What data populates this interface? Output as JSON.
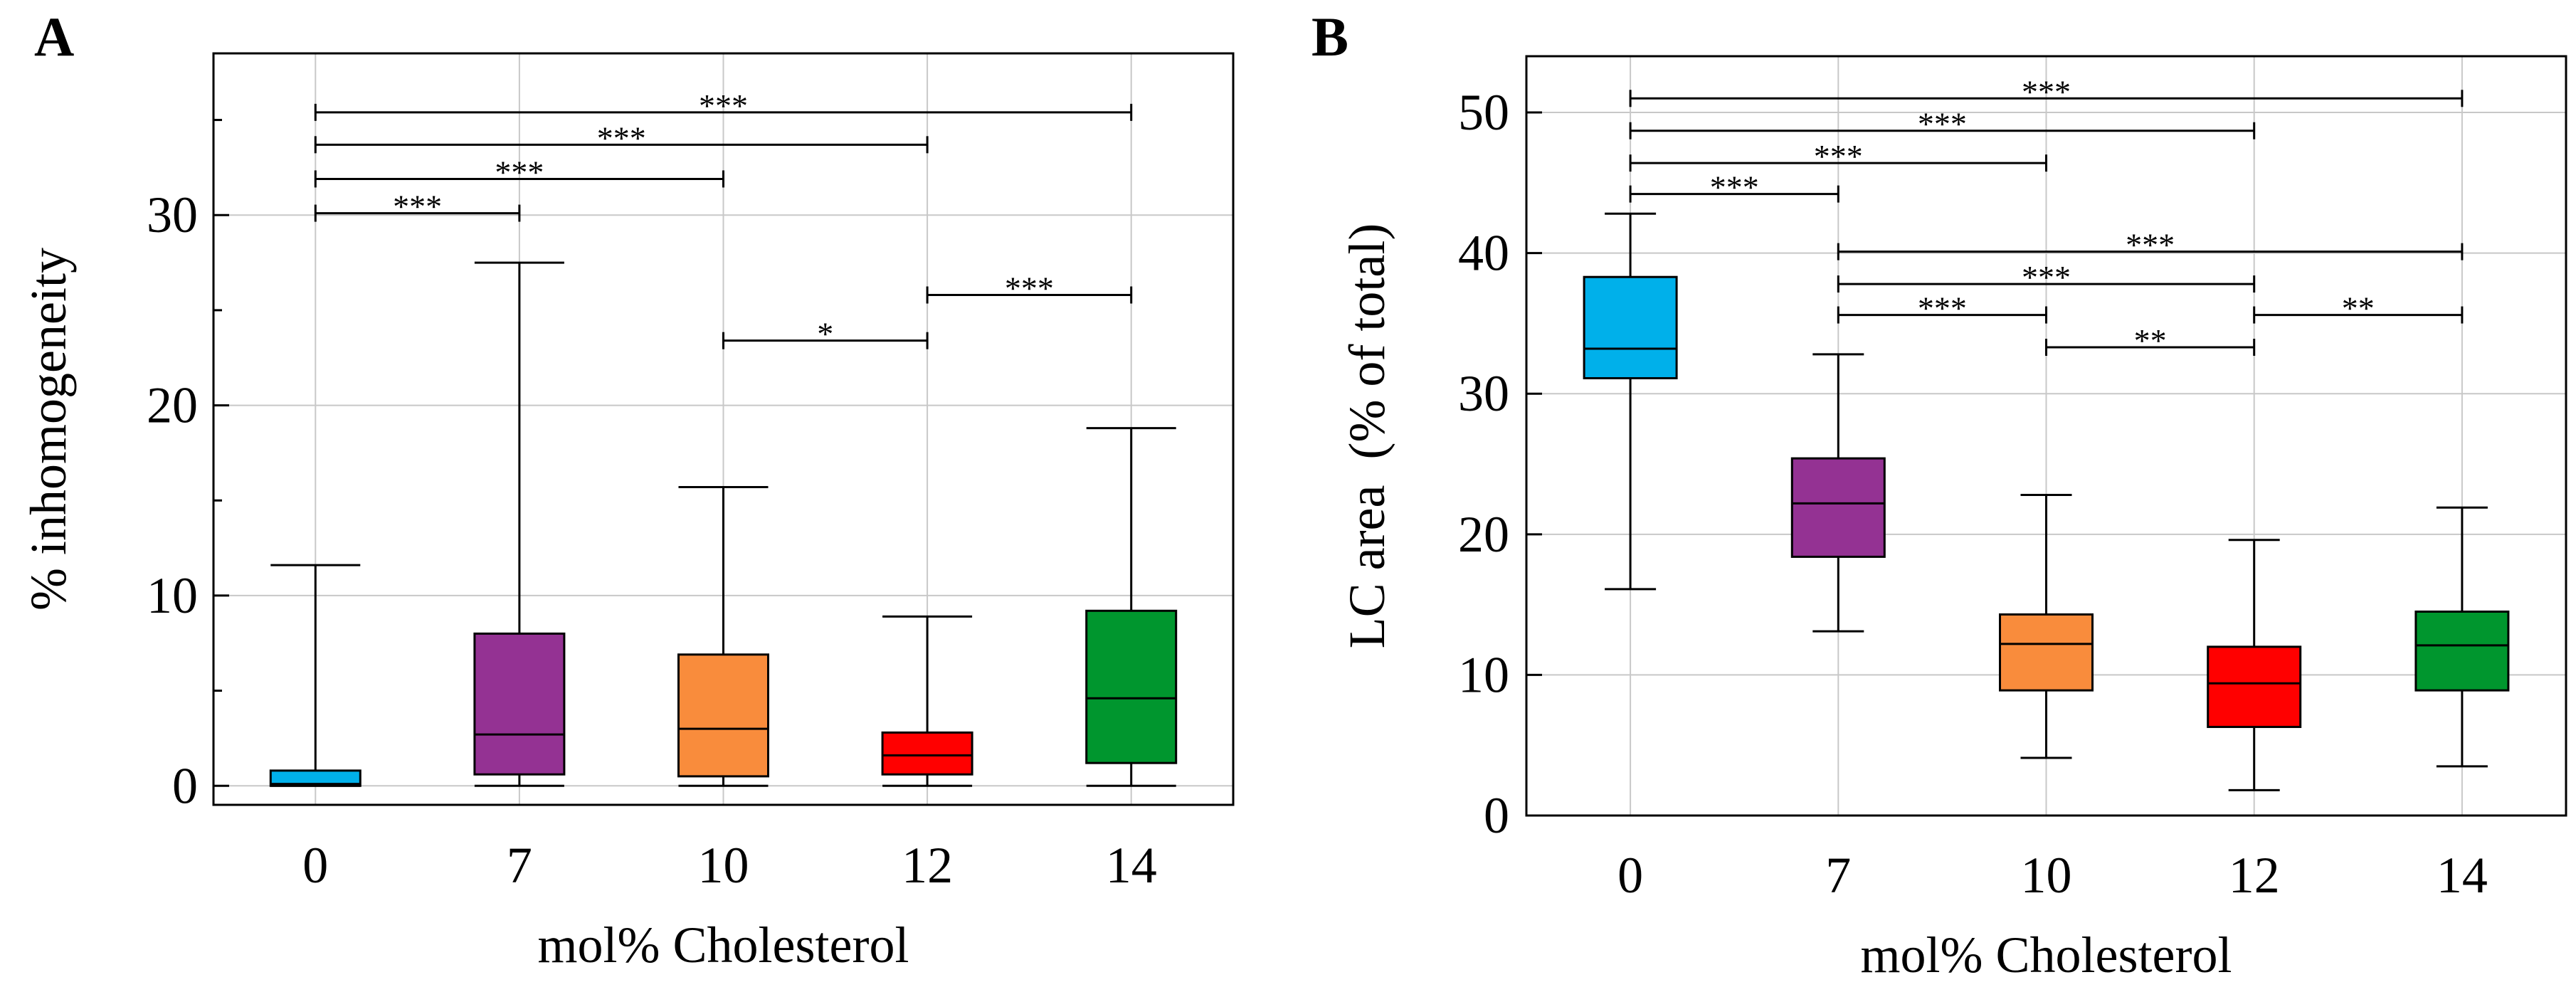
{
  "figure": {
    "colors": {
      "0": "#00b0ea",
      "7": "#943293",
      "10": "#f98c3c",
      "12": "#ff0000",
      "14": "#00962e"
    }
  },
  "chart_data": [
    {
      "panel": "A",
      "type": "box",
      "title": "",
      "xlabel": "mol% Cholesterol",
      "ylabel": "% inhomogeneity",
      "categories": [
        "0",
        "7",
        "10",
        "12",
        "14"
      ],
      "ylim": [
        -1,
        38.5
      ],
      "yticks": [
        0,
        10,
        20,
        30
      ],
      "grid": true,
      "boxes": [
        {
          "category": "0",
          "min": 0,
          "q1": 0,
          "median": 0.1,
          "q3": 0.8,
          "max": 11.6
        },
        {
          "category": "7",
          "min": 0,
          "q1": 0.6,
          "median": 2.7,
          "q3": 8.0,
          "max": 27.5
        },
        {
          "category": "10",
          "min": 0,
          "q1": 0.5,
          "median": 3.0,
          "q3": 6.9,
          "max": 15.7
        },
        {
          "category": "12",
          "min": 0,
          "q1": 0.6,
          "median": 1.6,
          "q3": 2.8,
          "max": 8.9
        },
        {
          "category": "14",
          "min": 0,
          "q1": 1.2,
          "median": 4.6,
          "q3": 9.2,
          "max": 18.8
        }
      ],
      "significance": [
        {
          "from": "0",
          "to": "14",
          "y": 35.4,
          "label": "***"
        },
        {
          "from": "0",
          "to": "12",
          "y": 33.7,
          "label": "***"
        },
        {
          "from": "0",
          "to": "10",
          "y": 31.9,
          "label": "***"
        },
        {
          "from": "0",
          "to": "7",
          "y": 30.1,
          "label": "***"
        },
        {
          "from": "12",
          "to": "14",
          "y": 25.8,
          "label": "***"
        },
        {
          "from": "10",
          "to": "12",
          "y": 23.4,
          "label": "*"
        }
      ]
    },
    {
      "panel": "B",
      "type": "box",
      "title": "",
      "xlabel": "mol% Cholesterol",
      "ylabel": "LC area  (% of total)",
      "categories": [
        "0",
        "7",
        "10",
        "12",
        "14"
      ],
      "ylim": [
        0,
        54
      ],
      "yticks": [
        0,
        10,
        20,
        30,
        40,
        50
      ],
      "grid": true,
      "boxes": [
        {
          "category": "0",
          "min": 16.1,
          "q1": 31.1,
          "median": 33.2,
          "q3": 38.3,
          "max": 42.8
        },
        {
          "category": "7",
          "min": 13.1,
          "q1": 18.4,
          "median": 22.2,
          "q3": 25.4,
          "max": 32.8
        },
        {
          "category": "10",
          "min": 4.1,
          "q1": 8.9,
          "median": 12.2,
          "q3": 14.3,
          "max": 22.8
        },
        {
          "category": "12",
          "min": 1.8,
          "q1": 6.3,
          "median": 9.4,
          "q3": 12.0,
          "max": 19.6
        },
        {
          "category": "14",
          "min": 3.5,
          "q1": 8.9,
          "median": 12.1,
          "q3": 14.5,
          "max": 21.9
        }
      ],
      "significance": [
        {
          "from": "0",
          "to": "14",
          "y": 51.0,
          "label": "***"
        },
        {
          "from": "0",
          "to": "12",
          "y": 48.7,
          "label": "***"
        },
        {
          "from": "0",
          "to": "10",
          "y": 46.4,
          "label": "***"
        },
        {
          "from": "0",
          "to": "7",
          "y": 44.2,
          "label": "***"
        },
        {
          "from": "7",
          "to": "14",
          "y": 40.1,
          "label": "***"
        },
        {
          "from": "7",
          "to": "12",
          "y": 37.8,
          "label": "***"
        },
        {
          "from": "7",
          "to": "10",
          "y": 35.6,
          "label": "***"
        },
        {
          "from": "12",
          "to": "14",
          "y": 35.6,
          "label": "**"
        },
        {
          "from": "10",
          "to": "12",
          "y": 33.3,
          "label": "**"
        }
      ]
    }
  ]
}
